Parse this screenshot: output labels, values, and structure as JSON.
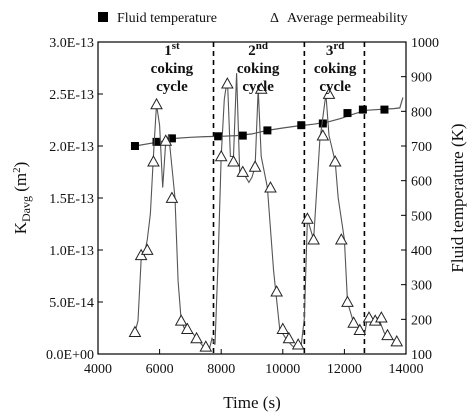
{
  "chart_data": {
    "type": "line",
    "xlabel": "Time (s)",
    "xlim": [
      4000,
      14000
    ],
    "xticks": [
      "4000",
      "6000",
      "8000",
      "10000",
      "12000",
      "14000"
    ],
    "xtick_values": [
      4000,
      6000,
      8000,
      10000,
      12000,
      14000
    ],
    "y_left": {
      "label_main": "K",
      "label_sub": "Davg",
      "label_unit": " (m",
      "label_sup": "2",
      "label_close": ")",
      "ylim": [
        0,
        3e-13
      ],
      "ticks": [
        "0.0E+00",
        "5.0E-14",
        "1.0E-13",
        "1.5E-13",
        "2.0E-13",
        "2.5E-13",
        "3.0E-13"
      ],
      "tick_values": [
        0,
        5e-14,
        1e-13,
        1.5e-13,
        2e-13,
        2.5e-13,
        3e-13
      ]
    },
    "y_right": {
      "label": "Fluid temperature (K)",
      "ylim": [
        100,
        1000
      ],
      "ticks": [
        "100",
        "200",
        "300",
        "400",
        "500",
        "600",
        "700",
        "800",
        "900",
        "1000"
      ],
      "tick_values": [
        100,
        200,
        300,
        400,
        500,
        600,
        700,
        800,
        900,
        1000
      ]
    },
    "legend": {
      "position": "top",
      "items": [
        {
          "marker": "filled-square",
          "label": "Fluid temperature"
        },
        {
          "marker": "triangle",
          "label": "Average permeability"
        }
      ]
    },
    "cycle_boundaries": [
      7750,
      10700,
      12650
    ],
    "cycles": [
      {
        "num": "1",
        "sup": "st",
        "line1": "coking",
        "line2": "cycle",
        "x": 6400
      },
      {
        "num": "2",
        "sup": "nd",
        "line1": "coking",
        "line2": "cycle",
        "x": 9200
      },
      {
        "num": "3",
        "sup": "rd",
        "line1": "coking",
        "line2": "cycle",
        "x": 11700
      }
    ],
    "series": [
      {
        "name": "Fluid temperature",
        "axis": "right",
        "unit": "K",
        "values_line": [
          [
            5200,
            700
          ],
          [
            6000,
            712
          ],
          [
            6500,
            722
          ],
          [
            7000,
            725
          ],
          [
            7500,
            727
          ],
          [
            8000,
            728
          ],
          [
            8500,
            730
          ],
          [
            9000,
            735
          ],
          [
            9500,
            745
          ],
          [
            10000,
            752
          ],
          [
            10500,
            758
          ],
          [
            11000,
            763
          ],
          [
            11500,
            770
          ],
          [
            11900,
            780
          ],
          [
            12300,
            792
          ],
          [
            12700,
            803
          ],
          [
            13200,
            806
          ],
          [
            13600,
            808
          ],
          [
            13800,
            810
          ],
          [
            13900,
            840
          ]
        ],
        "markers": [
          [
            5200,
            700
          ],
          [
            5900,
            712
          ],
          [
            6400,
            722
          ],
          [
            7900,
            728
          ],
          [
            8700,
            730
          ],
          [
            9500,
            745
          ],
          [
            10600,
            760
          ],
          [
            11300,
            765
          ],
          [
            12100,
            795
          ],
          [
            12600,
            805
          ],
          [
            13300,
            805
          ]
        ]
      },
      {
        "name": "Average permeability",
        "axis": "left",
        "values_line": [
          [
            5200,
            2.1e-14
          ],
          [
            5300,
            3.2e-14
          ],
          [
            5400,
            9e-14
          ],
          [
            5500,
            9.5e-14
          ],
          [
            5600,
            1.1e-13
          ],
          [
            5700,
            1.35e-13
          ],
          [
            5800,
            1.9e-13
          ],
          [
            5900,
            2.4e-13
          ],
          [
            6000,
            2.2e-13
          ],
          [
            6100,
            1.6e-13
          ],
          [
            6200,
            2.05e-13
          ],
          [
            6300,
            2.1e-13
          ],
          [
            6500,
            1.5e-13
          ],
          [
            6600,
            7e-14
          ],
          [
            6700,
            3.2e-14
          ],
          [
            6800,
            2.5e-14
          ],
          [
            7000,
            2.3e-14
          ],
          [
            7200,
            1.5e-14
          ],
          [
            7400,
            8e-15
          ],
          [
            7600,
            3e-15
          ],
          [
            7700,
            1.5e-14
          ],
          [
            7800,
            9e-15
          ],
          [
            7900,
            9e-14
          ],
          [
            8000,
            1.9e-13
          ],
          [
            8100,
            2.45e-13
          ],
          [
            8200,
            2.65e-13
          ],
          [
            8300,
            1.9e-13
          ],
          [
            8400,
            1.9e-13
          ],
          [
            8500,
            2.7e-13
          ],
          [
            8600,
            1.75e-13
          ],
          [
            8700,
            1.75e-13
          ],
          [
            8900,
            1.65e-13
          ],
          [
            9000,
            1.7e-13
          ],
          [
            9100,
            1.8e-13
          ],
          [
            9200,
            2.55e-13
          ],
          [
            9300,
            1.9e-13
          ],
          [
            9500,
            1.6e-13
          ],
          [
            9700,
            8e-14
          ],
          [
            9900,
            2.4e-14
          ],
          [
            10100,
            1.5e-14
          ],
          [
            10300,
            8e-15
          ],
          [
            10500,
            5e-15
          ],
          [
            10600,
            9e-15
          ],
          [
            10700,
            3.5e-14
          ],
          [
            10800,
            1.3e-13
          ],
          [
            11000,
            1.1e-13
          ],
          [
            11200,
            2.05e-13
          ],
          [
            11400,
            2.5e-13
          ],
          [
            11500,
            2.1e-13
          ],
          [
            11700,
            1.85e-13
          ],
          [
            11800,
            1.5e-13
          ],
          [
            12000,
            1.1e-13
          ],
          [
            12100,
            5e-14
          ],
          [
            12300,
            3e-14
          ],
          [
            12500,
            2.5e-14
          ],
          [
            12650,
            1.8e-14
          ],
          [
            12750,
            3.5e-14
          ],
          [
            12900,
            3.2e-14
          ],
          [
            13100,
            3.5e-14
          ],
          [
            13300,
            2e-14
          ],
          [
            13500,
            1.5e-14
          ],
          [
            13700,
            1.2e-14
          ]
        ],
        "markers": [
          [
            5200,
            2.1e-14
          ],
          [
            5400,
            9.5e-14
          ],
          [
            5600,
            1e-13
          ],
          [
            5800,
            1.85e-13
          ],
          [
            5900,
            2.4e-13
          ],
          [
            6200,
            2.05e-13
          ],
          [
            6400,
            1.5e-13
          ],
          [
            6700,
            3.2e-14
          ],
          [
            6900,
            2.4e-14
          ],
          [
            7200,
            1.5e-14
          ],
          [
            7500,
            7e-15
          ],
          [
            8000,
            1.9e-13
          ],
          [
            8200,
            2.6e-13
          ],
          [
            8400,
            1.85e-13
          ],
          [
            8700,
            1.75e-13
          ],
          [
            9100,
            1.8e-13
          ],
          [
            9300,
            2.55e-13
          ],
          [
            9600,
            1.6e-13
          ],
          [
            9800,
            6e-14
          ],
          [
            10000,
            2.4e-14
          ],
          [
            10200,
            1.5e-14
          ],
          [
            10500,
            9e-15
          ],
          [
            10800,
            1.3e-13
          ],
          [
            11000,
            1.1e-13
          ],
          [
            11300,
            2.1e-13
          ],
          [
            11500,
            2.5e-13
          ],
          [
            11700,
            1.85e-13
          ],
          [
            11900,
            1.1e-13
          ],
          [
            12100,
            5e-14
          ],
          [
            12300,
            3e-14
          ],
          [
            12500,
            2.3e-14
          ],
          [
            12800,
            3.5e-14
          ],
          [
            13000,
            3.2e-14
          ],
          [
            13200,
            3.5e-14
          ],
          [
            13400,
            1.8e-14
          ],
          [
            13700,
            1.2e-14
          ]
        ]
      }
    ]
  }
}
